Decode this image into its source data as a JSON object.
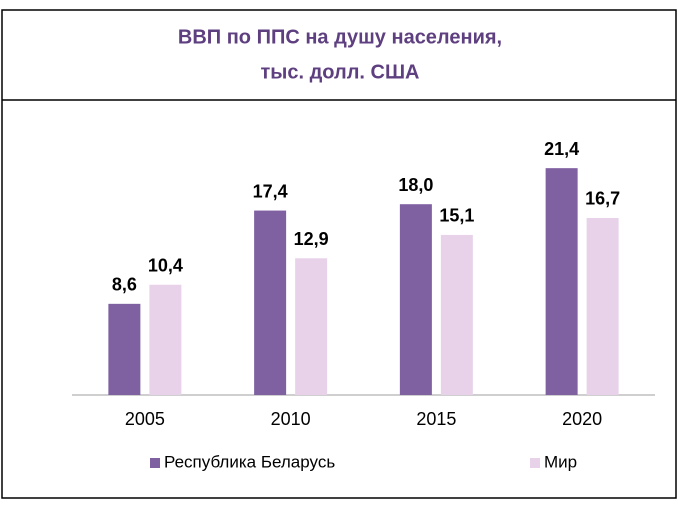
{
  "chart_data": {
    "type": "bar",
    "title": [
      "ВВП по ППС на душу населения,",
      "тыс. долл. США"
    ],
    "categories": [
      "2005",
      "2010",
      "2015",
      "2020"
    ],
    "series": [
      {
        "name": "Республика Беларусь",
        "color": "#7f60a1",
        "values": [
          8.6,
          17.4,
          18.0,
          21.4
        ],
        "value_labels": [
          "8,6",
          "17,4",
          "18,0",
          "21,4"
        ]
      },
      {
        "name": "Мир",
        "color": "#e8d2ea",
        "values": [
          10.4,
          12.9,
          15.1,
          16.7
        ],
        "value_labels": [
          "10,4",
          "12,9",
          "15,1",
          "16,7"
        ]
      }
    ],
    "ylim": [
      0,
      25
    ],
    "legend": "bottom"
  }
}
